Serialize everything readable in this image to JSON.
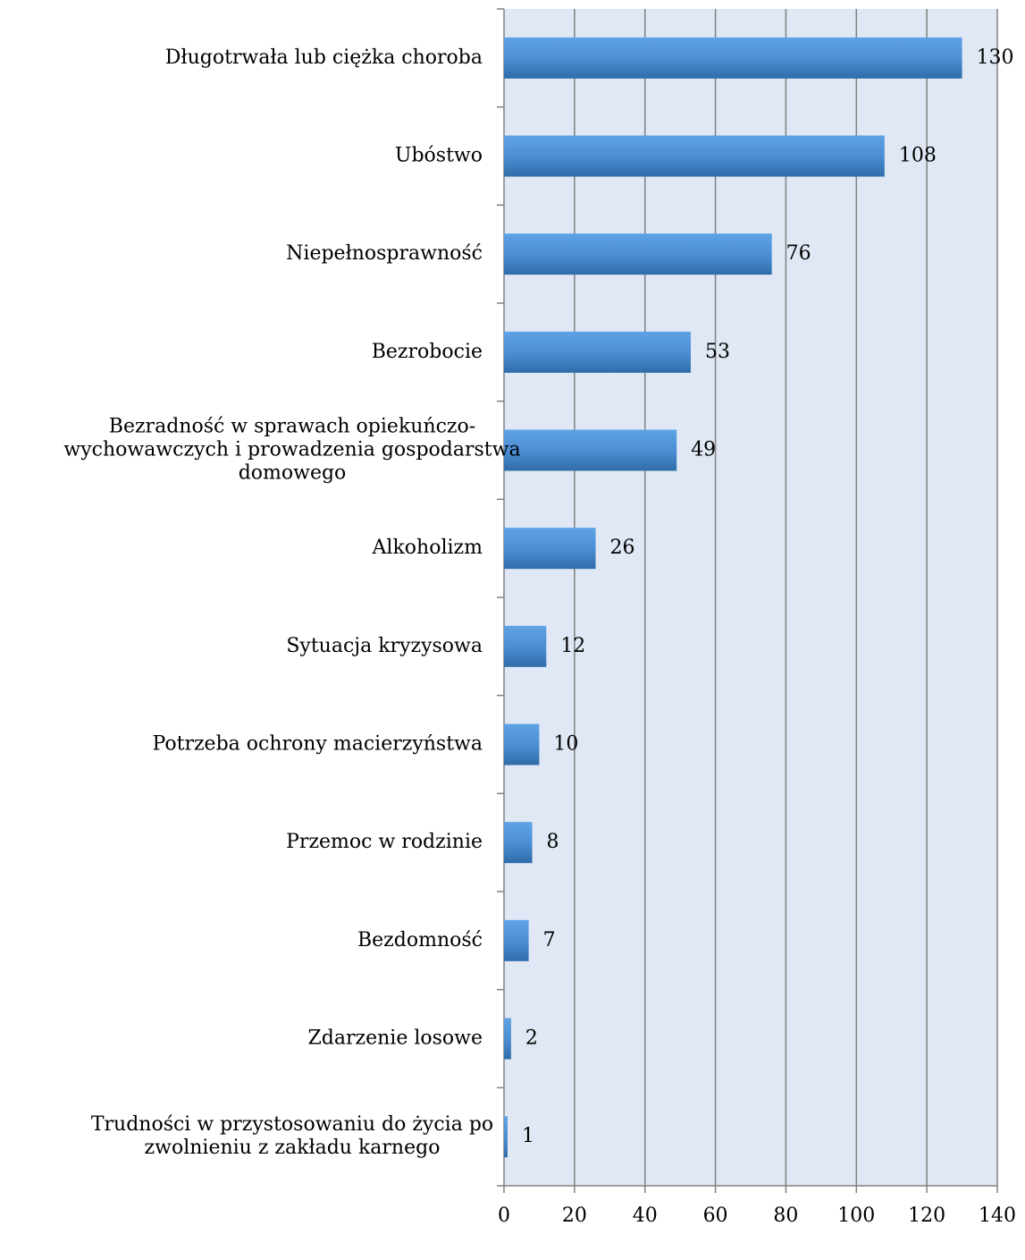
{
  "chart_data": {
    "type": "bar",
    "orientation": "horizontal",
    "categories": [
      "Długotrwała lub ciężka choroba",
      "Ubóstwo",
      "Niepełnosprawność",
      "Bezrobocie",
      "Bezradność w sprawach opiekuńczo-wychowawczych i prowadzenia gospodarstwa domowego",
      "Alkoholizm",
      "Sytuacja kryzysowa",
      "Potrzeba ochrony macierzyństwa",
      "Przemoc w rodzinie",
      "Bezdomność",
      "Zdarzenie losowe",
      "Trudności w przystosowaniu do życia po zwolnieniu z zakładu karnego"
    ],
    "category_lines": [
      [
        "Długotrwała lub ciężka choroba"
      ],
      [
        "Ubóstwo"
      ],
      [
        "Niepełnosprawność"
      ],
      [
        "Bezrobocie"
      ],
      [
        "Bezradność w sprawach opiekuńczo-",
        "wychowawczych i prowadzenia gospodarstwa",
        "domowego"
      ],
      [
        "Alkoholizm"
      ],
      [
        "Sytuacja kryzysowa"
      ],
      [
        "Potrzeba ochrony macierzyństwa"
      ],
      [
        "Przemoc w rodzinie"
      ],
      [
        "Bezdomność"
      ],
      [
        "Zdarzenie losowe"
      ],
      [
        "Trudności w przystosowaniu do życia po",
        "zwolnieniu z zakładu karnego"
      ]
    ],
    "values": [
      130,
      108,
      76,
      53,
      49,
      26,
      12,
      10,
      8,
      7,
      2,
      1
    ],
    "data_labels": [
      "130",
      "108",
      "76",
      "53",
      "49",
      "26",
      "12",
      "10",
      "8",
      "7",
      "2",
      "1"
    ],
    "xlim": [
      0,
      140
    ],
    "x_ticks": [
      0,
      20,
      40,
      60,
      80,
      100,
      120,
      140
    ],
    "x_tick_labels": [
      "0",
      "20",
      "40",
      "60",
      "80",
      "100",
      "120",
      "140"
    ],
    "title": "",
    "xlabel": "",
    "ylabel": "",
    "grid": true,
    "legend": "none",
    "colors": {
      "plot_background": "#dfe8f4",
      "gridline": "#808080",
      "axis": "#808080",
      "bar_light": "#5fa3e6",
      "bar_mid": "#4a8cd2",
      "bar_dark": "#2f6ca8"
    }
  }
}
